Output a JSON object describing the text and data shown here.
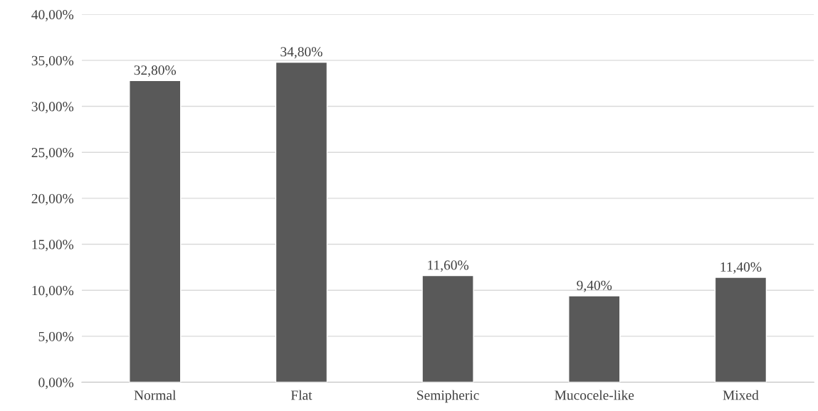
{
  "chart_data": {
    "type": "bar",
    "categories": [
      "Normal",
      "Flat",
      "Semipheric",
      "Mucocele-like",
      "Mixed"
    ],
    "values": [
      32.8,
      34.8,
      11.6,
      9.4,
      11.4
    ],
    "value_labels": [
      "32,80%",
      "34,80%",
      "11,60%",
      "9,40%",
      "11,40%"
    ],
    "color": "#595959",
    "ylim": [
      0,
      40
    ],
    "yticks": [
      {
        "value": 0,
        "label": "0,00%"
      },
      {
        "value": 5,
        "label": "5,00%"
      },
      {
        "value": 10,
        "label": "10,00%"
      },
      {
        "value": 15,
        "label": "15,00%"
      },
      {
        "value": 20,
        "label": "20,00%"
      },
      {
        "value": 25,
        "label": "25,00%"
      },
      {
        "value": 30,
        "label": "30,00%"
      },
      {
        "value": 35,
        "label": "35,00%"
      },
      {
        "value": 40,
        "label": "40,00%"
      }
    ],
    "grid": "y",
    "legend": false
  }
}
